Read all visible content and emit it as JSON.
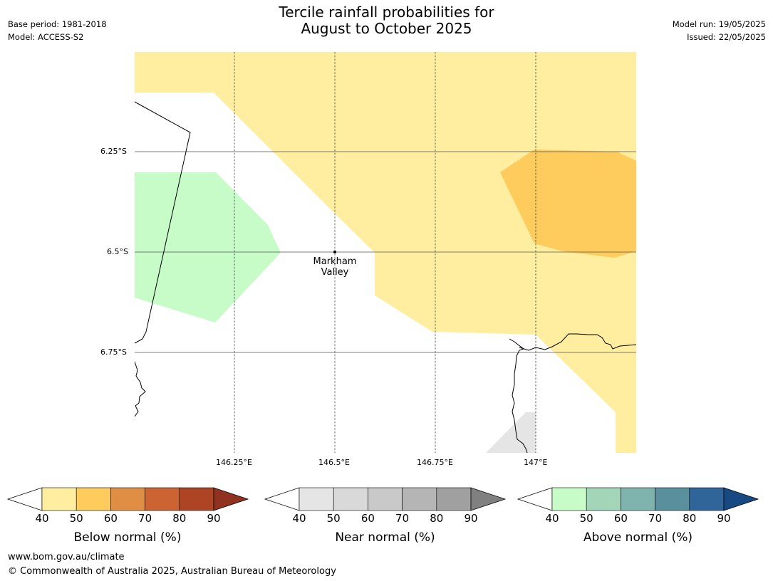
{
  "header": {
    "base_period": "Base period: 1981-2018",
    "model": "Model: ACCESS-S2",
    "model_run": "Model run: 19/05/2025",
    "issued": "Issued: 22/05/2025",
    "title_line1": "Tercile rainfall probabilities for",
    "title_line2": "August to October 2025"
  },
  "map": {
    "latitude_labels": [
      "6.25°S",
      "6.5°S",
      "6.75°S"
    ],
    "longitude_labels": [
      "146.25°E",
      "146.5°E",
      "146.75°E",
      "147°E"
    ],
    "place": {
      "name_line1": "Markham",
      "name_line2": "Valley"
    },
    "region_colors": {
      "below_40_50": "#ffeda0",
      "below_50_60": "#fecc5c",
      "above_40_50": "#c7fcc8",
      "near_40_50": "#e5e5e5"
    }
  },
  "legends": [
    {
      "title": "Below normal (%)",
      "ticks": [
        "40",
        "50",
        "60",
        "70",
        "80",
        "90"
      ],
      "colors": [
        "#ffeda0",
        "#fecc5c",
        "#e08e44",
        "#cb6332",
        "#ad4525",
        "#91311f"
      ]
    },
    {
      "title": "Near normal (%)",
      "ticks": [
        "40",
        "50",
        "60",
        "70",
        "80",
        "90"
      ],
      "colors": [
        "#e5e5e5",
        "#d9d9d9",
        "#c9c9c9",
        "#b5b5b5",
        "#a0a0a0",
        "#808080"
      ]
    },
    {
      "title": "Above normal (%)",
      "ticks": [
        "40",
        "50",
        "60",
        "70",
        "80",
        "90"
      ],
      "colors": [
        "#c7fcc8",
        "#a3d6b8",
        "#7fb3ad",
        "#5a909e",
        "#30659a",
        "#174a82"
      ]
    }
  ],
  "footer": {
    "url": "www.bom.gov.au/climate",
    "copyright": "© Commonwealth of Australia 2025, Australian Bureau of Meteorology"
  }
}
